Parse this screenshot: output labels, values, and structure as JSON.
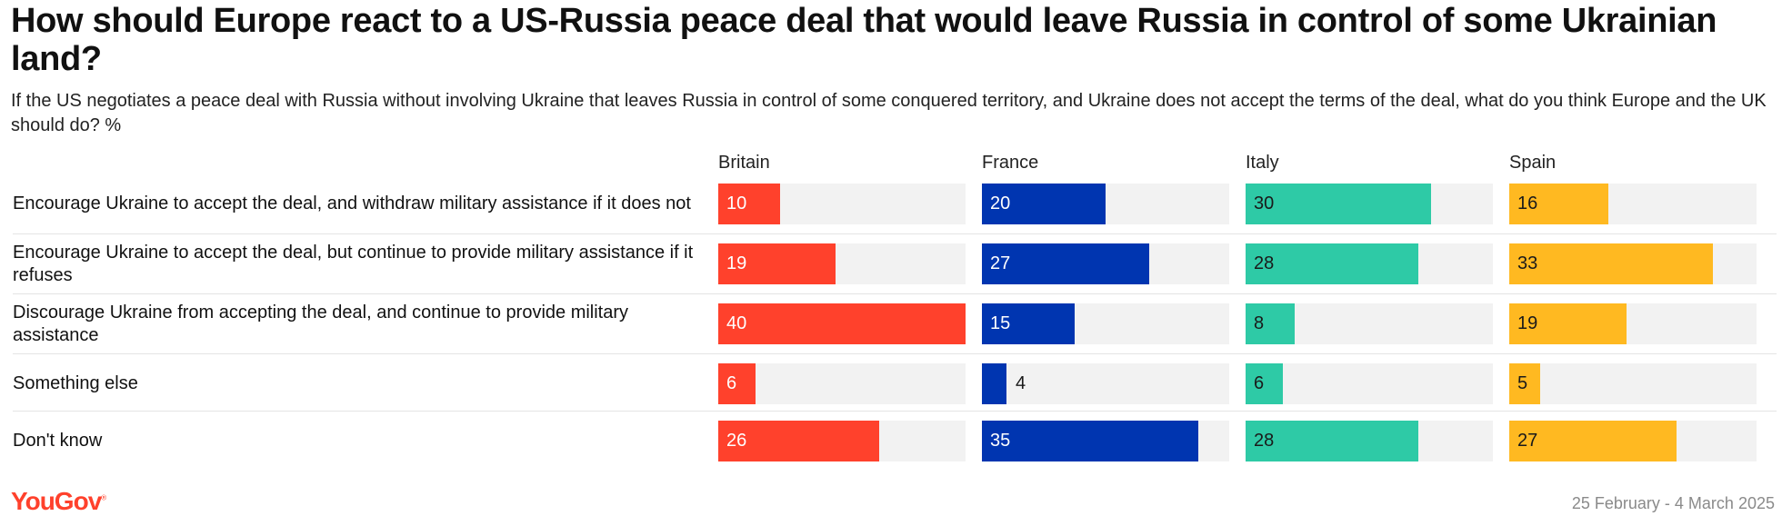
{
  "title": "How should Europe react to a US-Russia peace deal that would leave Russia in control of some Ukrainian land?",
  "subtitle": "If the US negotiates a peace deal with Russia without involving Ukraine that leaves Russia in control of some conquered territory, and Ukraine does not accept the terms of the deal, what do you think Europe and the UK should do? %",
  "footer": {
    "logo": "YouGov",
    "date": "25 February - 4 March 2025"
  },
  "colors": {
    "Britain": "#ff412c",
    "France": "#0035b0",
    "Italy": "#2ecaa6",
    "Spain": "#ffb921",
    "track": "#f2f2f2"
  },
  "chart_data": {
    "type": "bar",
    "orientation": "horizontal",
    "title": "How should Europe react to a US-Russia peace deal that would leave Russia in control of some Ukrainian land?",
    "unit": "%",
    "xlim": [
      0,
      40
    ],
    "categories": [
      "Encourage Ukraine to accept the deal, and withdraw military assistance if it does not",
      "Encourage Ukraine to accept the deal, but continue to provide military assistance if it refuses",
      "Discourage Ukraine from accepting the deal, and continue to provide military assistance",
      "Something else",
      "Don't know"
    ],
    "series": [
      {
        "name": "Britain",
        "values": [
          10,
          19,
          40,
          6,
          26
        ]
      },
      {
        "name": "France",
        "values": [
          20,
          27,
          15,
          4,
          35
        ]
      },
      {
        "name": "Italy",
        "values": [
          30,
          28,
          8,
          6,
          28
        ]
      },
      {
        "name": "Spain",
        "values": [
          16,
          33,
          19,
          5,
          27
        ]
      }
    ]
  }
}
